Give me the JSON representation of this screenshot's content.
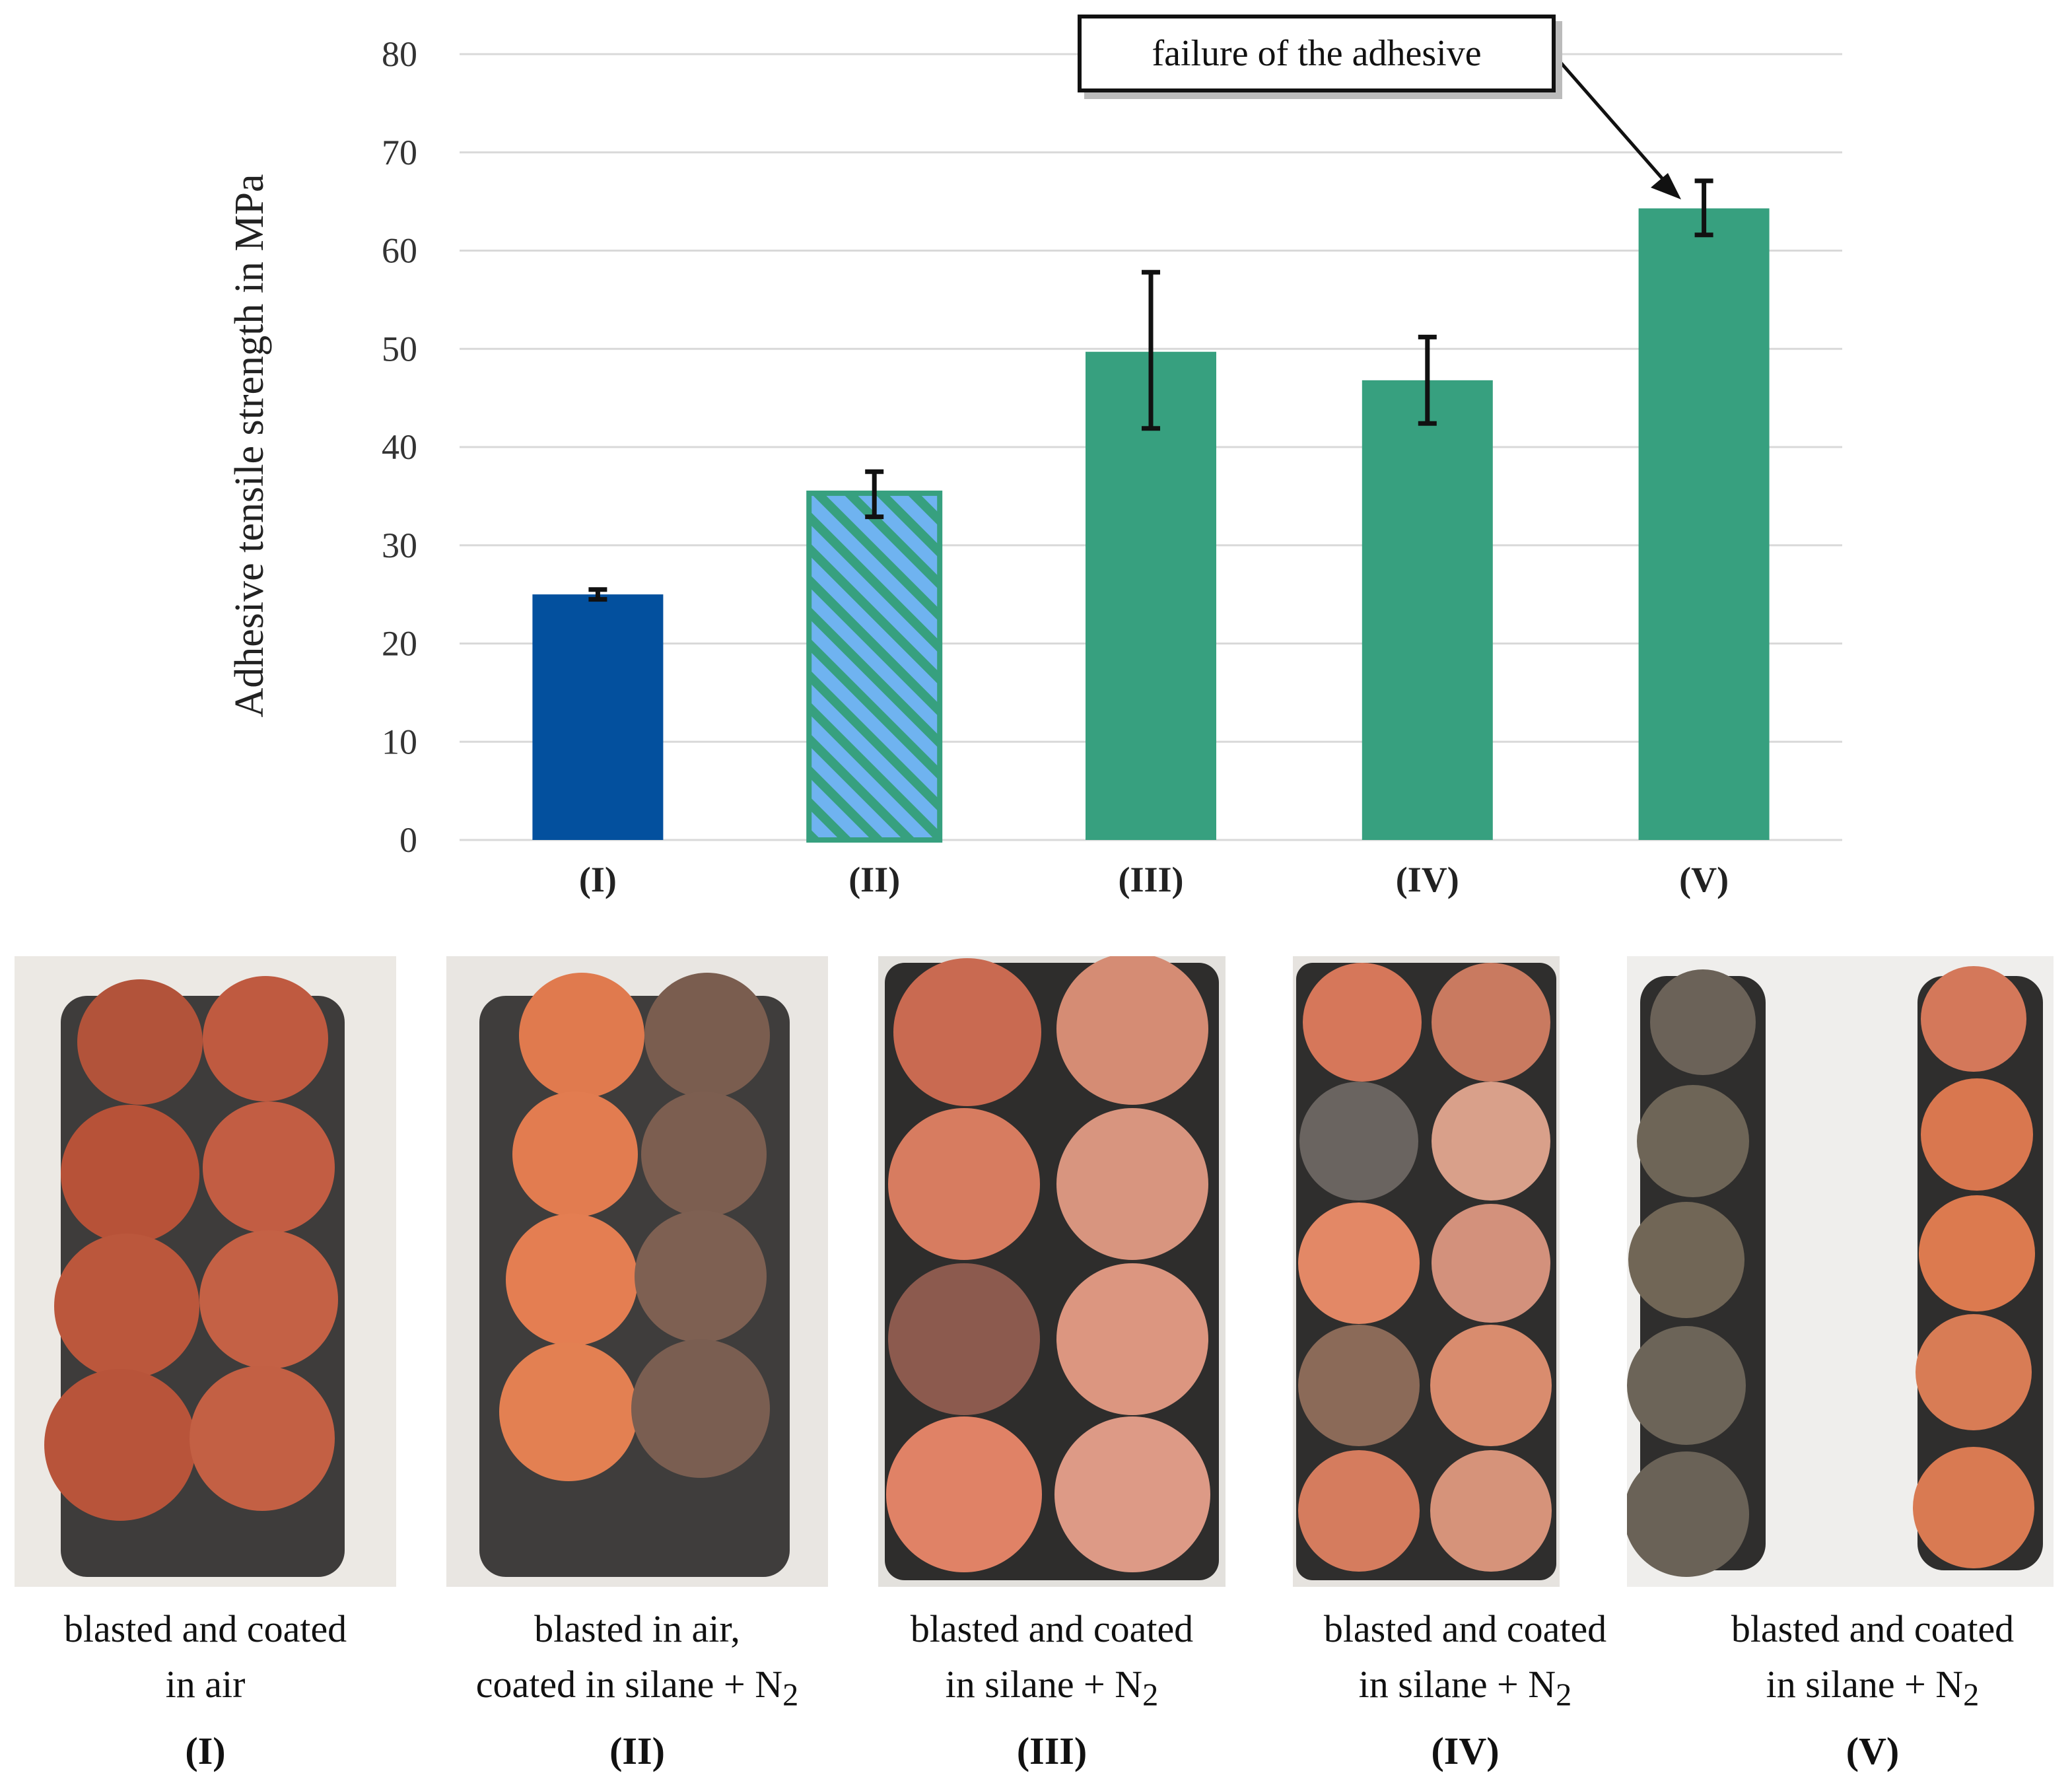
{
  "chart_data": {
    "type": "bar",
    "title": "",
    "xlabel": "",
    "ylabel": "Adhesive tensile strength in MPa",
    "ylim": [
      0,
      80
    ],
    "yticks": [
      0,
      10,
      20,
      30,
      40,
      50,
      60,
      70,
      80
    ],
    "categories": [
      "(I)",
      "(II)",
      "(III)",
      "(IV)",
      "(V)"
    ],
    "values": [
      25,
      35.3,
      49.7,
      46.8,
      64.3
    ],
    "error_low": [
      24.5,
      32.9,
      41.9,
      42.4,
      61.6
    ],
    "error_high": [
      25.5,
      37.5,
      57.8,
      51.2,
      67.1
    ],
    "bar_styles": [
      "solid-blue",
      "hatched-blue-green",
      "solid-green",
      "solid-green",
      "solid-green"
    ],
    "grid": true,
    "annotation": {
      "text": "failure of the adhesive",
      "target_category": "(V)"
    }
  },
  "colors": {
    "blue": "#03509e",
    "green": "#37a07f",
    "light_blue": "#6fb3f0",
    "grid": "#d9d9d9"
  },
  "panels": [
    {
      "id": "(I)",
      "line1": "blasted and coated",
      "line2": "in air",
      "sub": ""
    },
    {
      "id": "(II)",
      "line1": "blasted in air,",
      "line2": "coated in silane + N",
      "sub": "2"
    },
    {
      "id": "(III)",
      "line1": "blasted and coated",
      "line2": "in silane + N",
      "sub": "2"
    },
    {
      "id": "(IV)",
      "line1": "blasted and coated",
      "line2": "in silane + N",
      "sub": "2"
    },
    {
      "id": "(V)",
      "line1": "blasted and coated",
      "line2": "in silane + N",
      "sub": "2"
    }
  ]
}
